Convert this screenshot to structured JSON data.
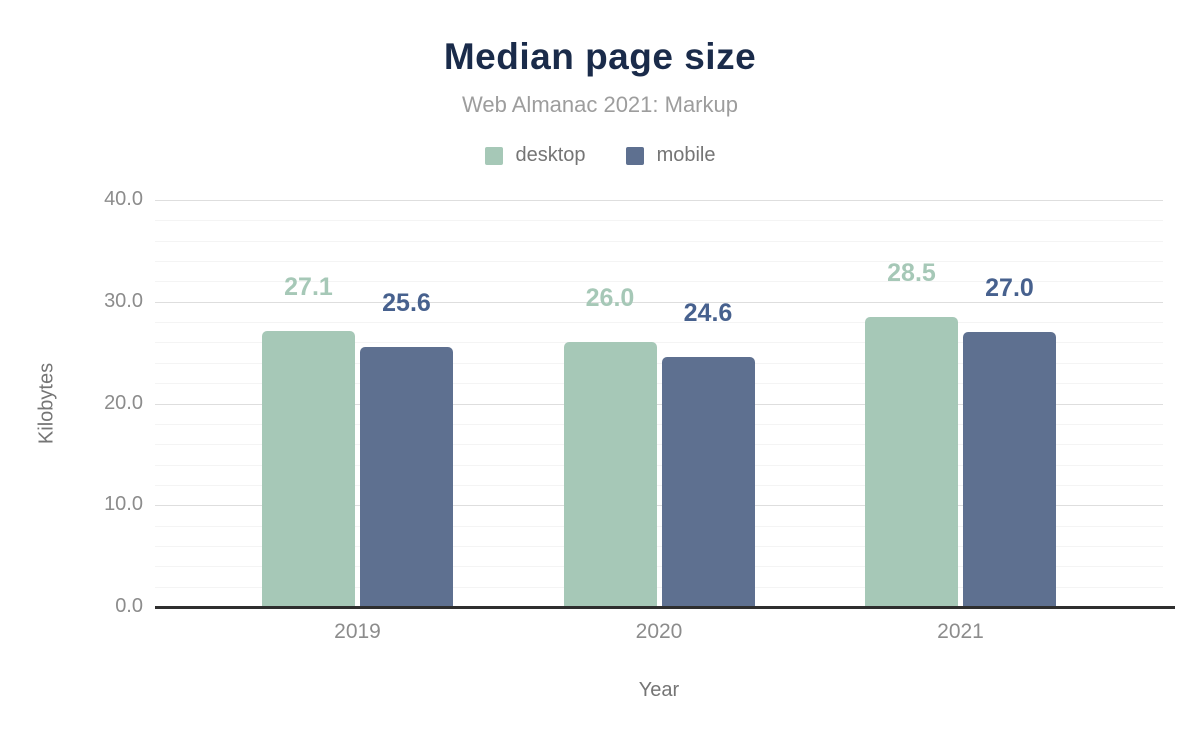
{
  "header": {
    "title": "Median page size",
    "subtitle": "Web Almanac 2021: Markup"
  },
  "legend": {
    "items": [
      {
        "label": "desktop",
        "color": "#a6c8b7"
      },
      {
        "label": "mobile",
        "color": "#5e7090"
      }
    ]
  },
  "chart_data": {
    "type": "bar",
    "title": "Median page size",
    "subtitle": "Web Almanac 2021: Markup",
    "categories": [
      "2019",
      "2020",
      "2021"
    ],
    "series": [
      {
        "name": "desktop",
        "values": [
          27.1,
          26.0,
          28.5
        ],
        "color": "#a6c8b7",
        "label_color": "#a6c8b7"
      },
      {
        "name": "mobile",
        "values": [
          25.6,
          24.6,
          27.0
        ],
        "color": "#5e7090",
        "label_color": "#47618e"
      }
    ],
    "value_labels": [
      [
        "27.1",
        "26.0",
        "28.5"
      ],
      [
        "25.6",
        "24.6",
        "27.0"
      ]
    ],
    "xlabel": "Year",
    "ylabel": "Kilobytes",
    "ylim": [
      0,
      40
    ],
    "yticks": [
      {
        "value": 0,
        "label": "0.0"
      },
      {
        "value": 10,
        "label": "10.0"
      },
      {
        "value": 20,
        "label": "20.0"
      },
      {
        "value": 30,
        "label": "30.0"
      },
      {
        "value": 40,
        "label": "40.0"
      }
    ],
    "minor_grid_step": 2,
    "grid": true,
    "legend_position": "top"
  },
  "colors": {
    "title_text": "#1a2b4a",
    "subtitle_text": "#9d9d9d",
    "legend_text": "#757575",
    "axis_tick_text": "#8c8c8c",
    "axis_title_text": "#757575",
    "baseline": "#2e2e2e",
    "major_gridline": "#dedede",
    "minor_gridline": "#f4f4f4",
    "background": "#ffffff"
  }
}
